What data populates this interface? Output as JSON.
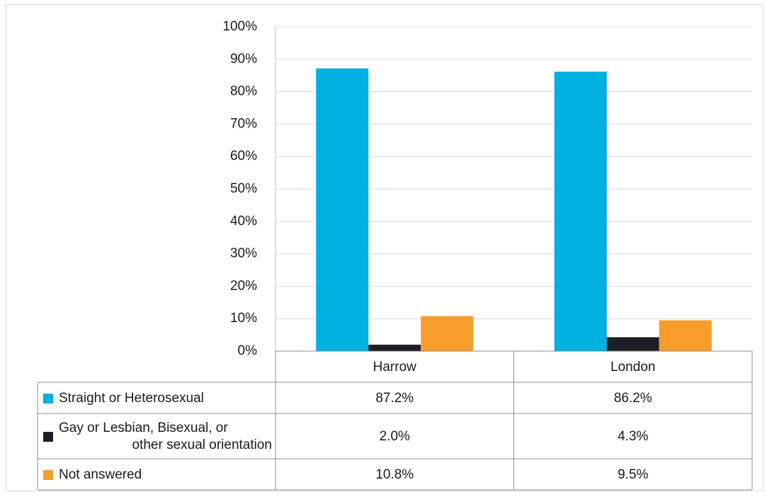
{
  "chart_data": {
    "type": "bar",
    "title": "",
    "xlabel": "",
    "ylabel": "",
    "categories": [
      "Harrow",
      "London"
    ],
    "ylim": [
      0,
      100
    ],
    "yticks": [
      "0%",
      "10%",
      "20%",
      "30%",
      "40%",
      "50%",
      "60%",
      "70%",
      "80%",
      "90%",
      "100%"
    ],
    "grid": true,
    "legend": "data-table-left",
    "series": [
      {
        "name": "Straight or Heterosexual",
        "values": [
          87.2,
          86.2
        ],
        "labels": [
          "87.2%",
          "86.2%"
        ],
        "color": "#00B0E0"
      },
      {
        "name": "Gay or Lesbian, Bisexual, or other sexual orientation",
        "name_lines": [
          "Gay or Lesbian, Bisexual, or",
          "other sexual orientation"
        ],
        "values": [
          2.0,
          4.3
        ],
        "labels": [
          "2.0%",
          "4.3%"
        ],
        "color": "#1C1F26"
      },
      {
        "name": "Not answered",
        "values": [
          10.8,
          9.5
        ],
        "labels": [
          "10.8%",
          "9.5%"
        ],
        "color": "#F89C2B"
      }
    ]
  }
}
